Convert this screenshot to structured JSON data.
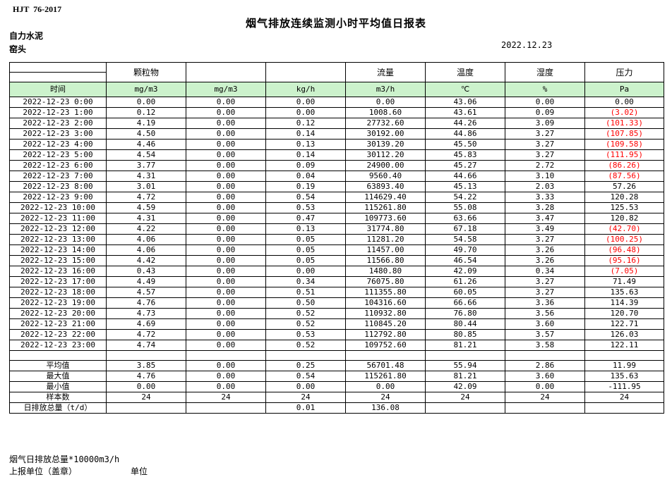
{
  "header": {
    "standard": "HJT  76-2017",
    "title": "烟气排放连续监测小时平均值日报表",
    "company": "自力水泥",
    "station": "窑头",
    "date": "2022.12.23"
  },
  "colors": {
    "header_green": "#ccf2cc",
    "negative_red": "#ff0000"
  },
  "table": {
    "group_headers": [
      "",
      "颗粒物",
      "",
      "",
      "流量",
      "温度",
      "湿度",
      "压力"
    ],
    "unit_headers": [
      "时间",
      "mg/m3",
      "mg/m3",
      "kg/h",
      "m3/h",
      "℃",
      "%",
      "Pa"
    ],
    "rows": [
      [
        "2022-12-23 0:00",
        "0.00",
        "0.00",
        "0.00",
        "0.00",
        "43.06",
        "0.00",
        "0.00"
      ],
      [
        "2022-12-23 1:00",
        "0.12",
        "0.00",
        "0.00",
        "1008.60",
        "43.61",
        "0.09",
        "(3.02)"
      ],
      [
        "2022-12-23 2:00",
        "4.19",
        "0.00",
        "0.12",
        "27732.60",
        "44.26",
        "3.09",
        "(101.33)"
      ],
      [
        "2022-12-23 3:00",
        "4.50",
        "0.00",
        "0.14",
        "30192.00",
        "44.86",
        "3.27",
        "(107.85)"
      ],
      [
        "2022-12-23 4:00",
        "4.46",
        "0.00",
        "0.13",
        "30139.20",
        "45.50",
        "3.27",
        "(109.58)"
      ],
      [
        "2022-12-23 5:00",
        "4.54",
        "0.00",
        "0.14",
        "30112.20",
        "45.83",
        "3.27",
        "(111.95)"
      ],
      [
        "2022-12-23 6:00",
        "3.77",
        "0.00",
        "0.09",
        "24900.00",
        "45.27",
        "2.72",
        "(86.26)"
      ],
      [
        "2022-12-23 7:00",
        "4.31",
        "0.00",
        "0.04",
        "9560.40",
        "44.66",
        "3.10",
        "(87.56)"
      ],
      [
        "2022-12-23 8:00",
        "3.01",
        "0.00",
        "0.19",
        "63893.40",
        "45.13",
        "2.03",
        "57.26"
      ],
      [
        "2022-12-23 9:00",
        "4.72",
        "0.00",
        "0.54",
        "114629.40",
        "54.22",
        "3.33",
        "120.28"
      ],
      [
        "2022-12-23 10:00",
        "4.59",
        "0.00",
        "0.53",
        "115261.80",
        "55.08",
        "3.28",
        "125.53"
      ],
      [
        "2022-12-23 11:00",
        "4.31",
        "0.00",
        "0.47",
        "109773.60",
        "63.66",
        "3.47",
        "120.82"
      ],
      [
        "2022-12-23 12:00",
        "4.22",
        "0.00",
        "0.13",
        "31774.80",
        "67.18",
        "3.49",
        "(42.70)"
      ],
      [
        "2022-12-23 13:00",
        "4.06",
        "0.00",
        "0.05",
        "11281.20",
        "54.58",
        "3.27",
        "(100.25)"
      ],
      [
        "2022-12-23 14:00",
        "4.06",
        "0.00",
        "0.05",
        "11457.00",
        "49.70",
        "3.26",
        "(96.48)"
      ],
      [
        "2022-12-23 15:00",
        "4.42",
        "0.00",
        "0.05",
        "11566.80",
        "46.54",
        "3.26",
        "(95.16)"
      ],
      [
        "2022-12-23 16:00",
        "0.43",
        "0.00",
        "0.00",
        "1480.80",
        "42.09",
        "0.34",
        "(7.05)"
      ],
      [
        "2022-12-23 17:00",
        "4.49",
        "0.00",
        "0.34",
        "76075.80",
        "61.26",
        "3.27",
        "71.49"
      ],
      [
        "2022-12-23 18:00",
        "4.57",
        "0.00",
        "0.51",
        "111355.80",
        "60.05",
        "3.27",
        "135.63"
      ],
      [
        "2022-12-23 19:00",
        "4.76",
        "0.00",
        "0.50",
        "104316.60",
        "66.66",
        "3.36",
        "114.39"
      ],
      [
        "2022-12-23 20:00",
        "4.73",
        "0.00",
        "0.52",
        "110932.80",
        "76.80",
        "3.56",
        "120.70"
      ],
      [
        "2022-12-23 21:00",
        "4.69",
        "0.00",
        "0.52",
        "110845.20",
        "80.44",
        "3.60",
        "122.71"
      ],
      [
        "2022-12-23 22:00",
        "4.72",
        "0.00",
        "0.53",
        "112792.80",
        "80.85",
        "3.57",
        "126.03"
      ],
      [
        "2022-12-23 23:00",
        "4.74",
        "0.00",
        "0.52",
        "109752.60",
        "81.21",
        "3.58",
        "122.11"
      ]
    ],
    "spacer_row": [
      "",
      "",
      "",
      "",
      "",
      "",
      "",
      ""
    ],
    "summary_rows": [
      [
        "平均值",
        "3.85",
        "0.00",
        "0.25",
        "56701.48",
        "55.94",
        "2.86",
        "11.99"
      ],
      [
        "最大值",
        "4.76",
        "0.00",
        "0.54",
        "115261.80",
        "81.21",
        "3.60",
        "135.63"
      ],
      [
        "最小值",
        "0.00",
        "0.00",
        "0.00",
        "0.00",
        "42.09",
        "0.00",
        "-111.95"
      ],
      [
        "样本数",
        "24",
        "24",
        "24",
        "24",
        "24",
        "24",
        "24"
      ],
      [
        "日排放总量（t/d）",
        "",
        "",
        "0.01",
        "136.08",
        "",
        "",
        ""
      ]
    ]
  },
  "footer": {
    "note": "烟气日排放总量*10000m3/h",
    "report_unit": "上报单位（盖章）",
    "unit_label": "单位"
  }
}
